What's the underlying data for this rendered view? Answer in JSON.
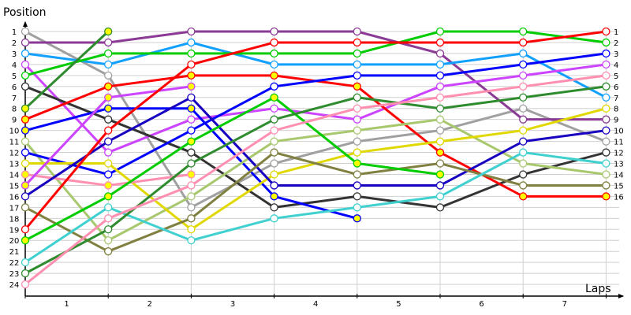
{
  "chart_data": {
    "type": "line",
    "ylabel": "Position",
    "xlabel": "Laps",
    "x_ticks": [
      "1",
      "2",
      "3",
      "4",
      "5",
      "6",
      "7"
    ],
    "laps": [
      0,
      1,
      2,
      3,
      4,
      5,
      6,
      7
    ],
    "ylim": [
      1,
      24
    ],
    "y_inverted": true,
    "y_ticks": [
      1,
      2,
      3,
      4,
      5,
      6,
      7,
      8,
      9,
      10,
      11,
      12,
      13,
      14,
      15,
      16,
      17,
      18,
      19,
      20,
      21,
      22,
      23,
      24
    ],
    "right_labels": [
      1,
      2,
      3,
      4,
      5,
      6,
      7,
      8,
      9,
      10,
      11,
      12,
      13,
      14,
      15,
      16
    ],
    "grid": true,
    "series": [
      {
        "color": "#a0a0a0",
        "marker": "#ffffff",
        "positions": [
          1,
          5,
          17,
          13,
          11,
          10,
          8,
          11
        ]
      },
      {
        "color": "#8b3a96",
        "marker": "#ffffff",
        "positions": [
          2,
          2,
          1,
          1,
          1,
          3,
          9,
          9
        ]
      },
      {
        "color": "#12a0ff",
        "marker": "#ffffff",
        "positions": [
          3,
          4,
          2,
          4,
          4,
          4,
          3,
          7
        ]
      },
      {
        "color": "#cc44ff",
        "marker": "#ffffff",
        "positions": [
          4,
          12,
          9,
          8,
          9,
          6,
          5,
          4
        ]
      },
      {
        "color": "#00cc00",
        "marker": "#ffffff",
        "positions": [
          5,
          3,
          3,
          3,
          3,
          1,
          1,
          2
        ]
      },
      {
        "color": "#333333",
        "marker": "#ffffff",
        "positions": [
          6,
          9,
          12,
          17,
          16,
          17,
          14,
          12
        ]
      },
      {
        "color": "#2e8b2e",
        "marker": "#ffff00",
        "positions": [
          8,
          1
        ]
      },
      {
        "color": "#ff0000",
        "marker": "#ffff00",
        "positions": [
          9,
          6,
          5,
          5,
          6,
          12,
          16,
          16
        ]
      },
      {
        "color": "#0000ff",
        "marker": "#ffff00",
        "positions": [
          10,
          8,
          8,
          16,
          18
        ]
      },
      {
        "color": "#a8c86e",
        "marker": "#ffffff",
        "positions": [
          11,
          20,
          16,
          11,
          10,
          9,
          13,
          14
        ]
      },
      {
        "color": "#0000ff",
        "marker": "#ffffff",
        "positions": [
          12,
          14,
          10,
          6,
          5,
          5,
          4,
          3
        ]
      },
      {
        "color": "#e0d800",
        "marker": "#ffffff",
        "positions": [
          13,
          13,
          19,
          14,
          12,
          11,
          10,
          8
        ]
      },
      {
        "color": "#ff8fb0",
        "marker": "#ffff00",
        "positions": [
          14,
          15,
          14
        ]
      },
      {
        "color": "#cc44ff",
        "marker": "#ffff00",
        "positions": [
          15,
          7,
          6
        ]
      },
      {
        "color": "#1800c0",
        "marker": "#ffffff",
        "positions": [
          16,
          11,
          7,
          15,
          15,
          15,
          11,
          10
        ]
      },
      {
        "color": "#808040",
        "marker": "#ffffff",
        "positions": [
          17,
          21,
          18,
          12,
          14,
          13,
          15,
          15
        ]
      },
      {
        "color": "#ff0000",
        "marker": "#ffffff",
        "positions": [
          19,
          10,
          4,
          2,
          2,
          2,
          2,
          1
        ]
      },
      {
        "color": "#00cc00",
        "marker": "#ffff00",
        "positions": [
          20,
          16,
          11,
          7,
          13,
          14
        ]
      },
      {
        "color": "#40d0d0",
        "marker": "#ffffff",
        "positions": [
          22,
          17,
          20,
          18,
          17,
          16,
          12,
          13
        ]
      },
      {
        "color": "#2e8b2e",
        "marker": "#ffffff",
        "positions": [
          23,
          19,
          13,
          9,
          7,
          8,
          7,
          6
        ]
      },
      {
        "color": "#ff8fb0",
        "marker": "#ffffff",
        "positions": [
          24,
          18,
          15,
          10,
          8,
          7,
          6,
          5
        ]
      }
    ]
  }
}
